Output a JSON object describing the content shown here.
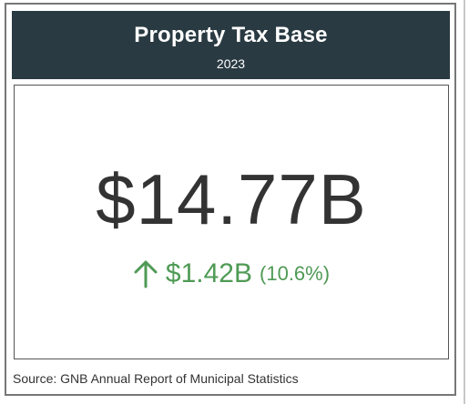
{
  "header": {
    "title": "Property Tax Base",
    "year": "2023"
  },
  "kpi": {
    "value": "$14.77B",
    "change_amount": "$1.42B",
    "change_percent": "(10.6%)",
    "direction_icon": "arrow-up-icon"
  },
  "source": "Source: GNB Annual Report of Municipal Statistics",
  "colors": {
    "header_bg": "#293a42",
    "positive": "#4f9a55",
    "value_text": "#333333"
  }
}
